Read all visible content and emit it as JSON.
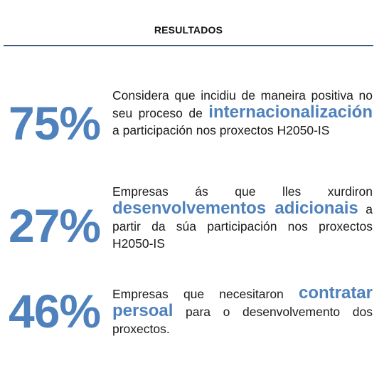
{
  "header": {
    "title": "RESULTADOS"
  },
  "colors": {
    "accent": "#4f81bd",
    "rule": "#3e5a7a",
    "text": "#1a1a1a"
  },
  "stats": [
    {
      "percent": "75%",
      "before": "Considera que incidiu de maneira positiva no seu proceso de ",
      "highlight": "internacionalización",
      "after": " a participación nos proxectos H2050-IS"
    },
    {
      "percent": "27%",
      "before": "Empresas ás que lles xurdiron ",
      "highlight": "desenvolvementos adicionais",
      "after": " a partir da súa participación nos proxectos H2050-IS"
    },
    {
      "percent": "46%",
      "before": "Empresas que necesitaron ",
      "highlight": "contratar persoal",
      "after": " para o desenvolvemento dos proxectos."
    }
  ]
}
